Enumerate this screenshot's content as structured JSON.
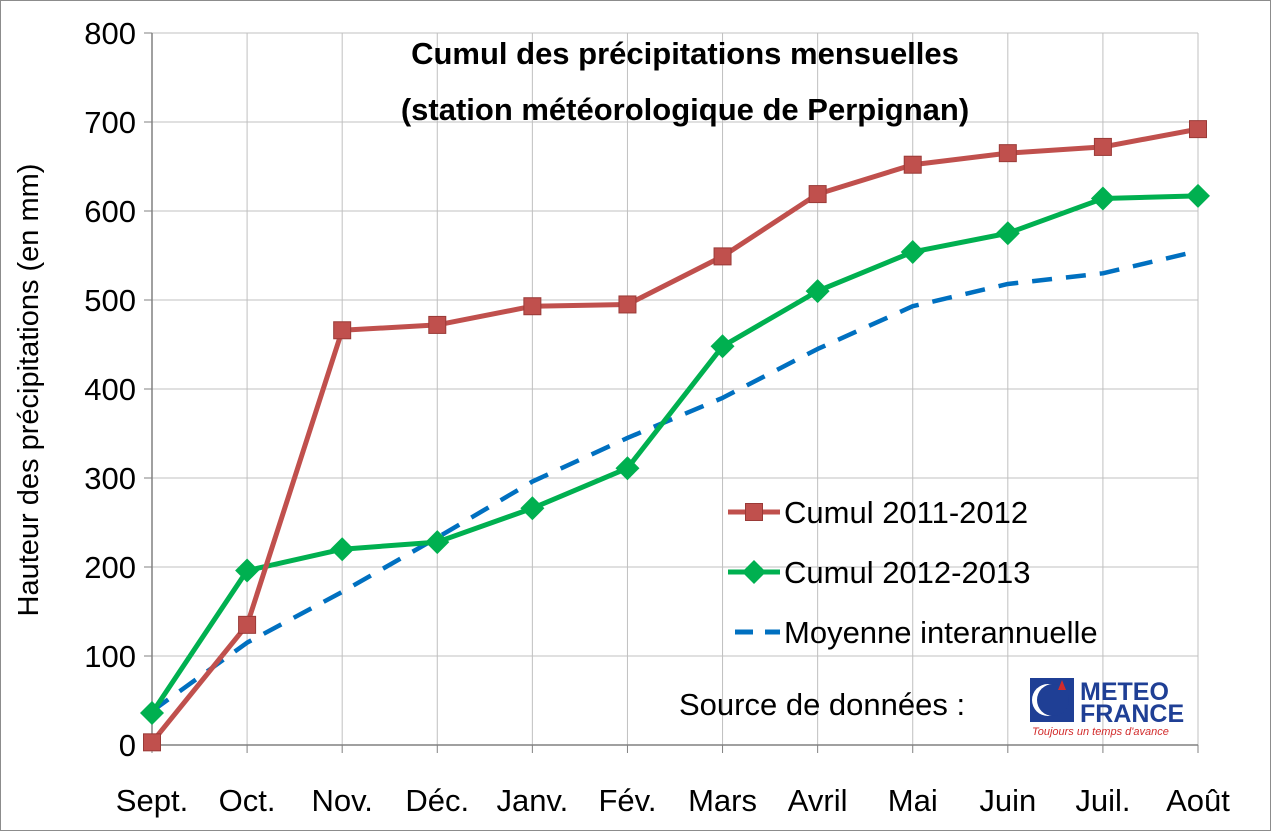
{
  "colors": {
    "series_2011": "#c0504d",
    "series_2012": "#00b050",
    "series_mean": "#0070c0",
    "grid": "#c0c0c0"
  },
  "source": {
    "label": "Source de données :",
    "logo_line1": "METEO",
    "logo_line2": "FRANCE",
    "logo_tagline": "Toujours un temps d'avance"
  },
  "chart_data": {
    "type": "line",
    "title_line1": "Cumul des précipitations mensuelles",
    "title_line2": "(station météorologique de Perpignan)",
    "xlabel": "",
    "ylabel": "Hauteur des précipitations (en mm)",
    "ylim": [
      0,
      800
    ],
    "yticks": [
      0,
      100,
      200,
      300,
      400,
      500,
      600,
      700,
      800
    ],
    "grid": true,
    "legend_position": "bottom-right",
    "categories": [
      "Sept.",
      "Oct.",
      "Nov.",
      "Déc.",
      "Janv.",
      "Fév.",
      "Mars",
      "Avril",
      "Mai",
      "Juin",
      "Juil.",
      "Août"
    ],
    "series": [
      {
        "name": "Cumul 2011-2012",
        "color": "#c0504d",
        "marker": "square",
        "style": "solid",
        "values": [
          3,
          135,
          466,
          472,
          493,
          495,
          549,
          619,
          652,
          665,
          672,
          692
        ]
      },
      {
        "name": "Cumul 2012-2013",
        "color": "#00b050",
        "marker": "diamond",
        "style": "solid",
        "values": [
          36,
          196,
          220,
          228,
          266,
          311,
          448,
          510,
          554,
          575,
          614,
          617
        ]
      },
      {
        "name": "Moyenne interannuelle",
        "color": "#0070c0",
        "marker": "none",
        "style": "dashed",
        "values": [
          38,
          115,
          172,
          233,
          296,
          345,
          390,
          445,
          493,
          518,
          530,
          555
        ]
      }
    ]
  }
}
